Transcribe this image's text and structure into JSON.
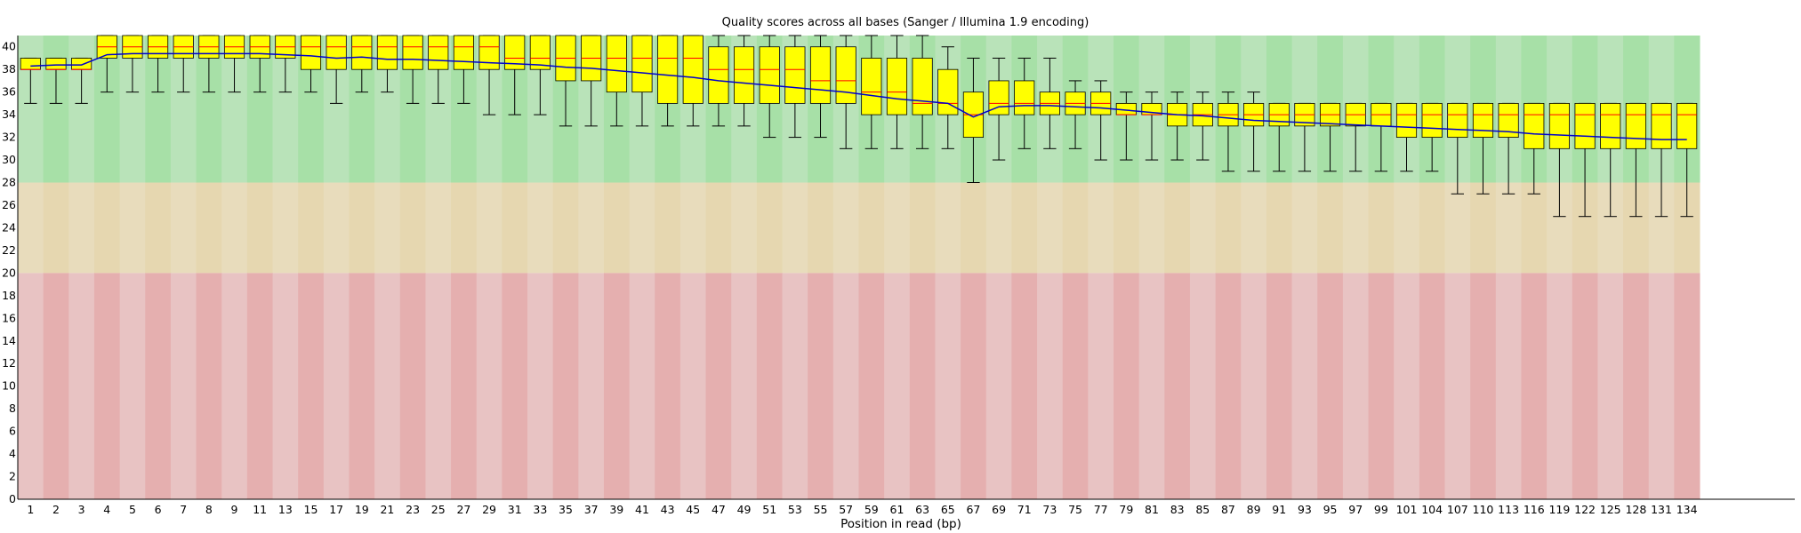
{
  "chart_data": {
    "type": "box",
    "title": "Quality scores across all bases (Sanger / Illumina 1.9 encoding)",
    "xlabel": "Position in read (bp)",
    "ylabel": "",
    "ylim": [
      0,
      41
    ],
    "yticks": [
      0,
      2,
      4,
      6,
      8,
      10,
      12,
      14,
      16,
      18,
      20,
      22,
      24,
      26,
      28,
      30,
      32,
      34,
      36,
      38,
      40
    ],
    "categories": [
      "1",
      "2",
      "3",
      "4",
      "5",
      "6",
      "7",
      "8",
      "9",
      "10-11",
      "12-13",
      "14-15",
      "16-17",
      "18-19",
      "20-21",
      "22-23",
      "24-25",
      "26-27",
      "28-29",
      "30-31",
      "32-33",
      "34-35",
      "36-37",
      "38-39",
      "40-41",
      "42-43",
      "44-45",
      "46-47",
      "48-49",
      "50-51",
      "52-53",
      "54-55",
      "56-57",
      "58-59",
      "60-61",
      "62-63",
      "64-65",
      "66-67",
      "68-69",
      "70-71",
      "72-73",
      "74-75",
      "76-77",
      "78-79",
      "80-81",
      "82-83",
      "84-85",
      "86-87",
      "88-89",
      "90-91",
      "92-93",
      "94-95",
      "96-97",
      "98-99",
      "100-101",
      "102-104",
      "105-107",
      "108-110",
      "111-113",
      "114-116",
      "117-119",
      "120-122",
      "123-125",
      "126-128",
      "129-131",
      "132-134"
    ],
    "x_tick_labels": [
      "1",
      "2",
      "3",
      "4",
      "5",
      "6",
      "7",
      "8",
      "9",
      "11",
      "13",
      "15",
      "17",
      "19",
      "21",
      "23",
      "25",
      "27",
      "29",
      "31",
      "33",
      "35",
      "37",
      "39",
      "41",
      "43",
      "45",
      "47",
      "49",
      "51",
      "53",
      "55",
      "57",
      "59",
      "61",
      "63",
      "65",
      "67",
      "69",
      "71",
      "73",
      "75",
      "77",
      "79",
      "81",
      "83",
      "85",
      "87",
      "89",
      "91",
      "93",
      "95",
      "97",
      "99",
      "101",
      "104",
      "107",
      "110",
      "113",
      "116",
      "119",
      "122",
      "125",
      "128",
      "131",
      "134"
    ],
    "bands": [
      {
        "name": "good",
        "from": 28,
        "to": 41,
        "colors": [
          "#b9e3b9",
          "#a7e0a7"
        ]
      },
      {
        "name": "reasonable",
        "from": 20,
        "to": 28,
        "colors": [
          "#e8dcbc",
          "#e6d7b0"
        ]
      },
      {
        "name": "poor",
        "from": 0,
        "to": 20,
        "colors": [
          "#e8c3c3",
          "#e5afaf"
        ]
      }
    ],
    "colors": {
      "box": "#ffff00",
      "median": "#ff0000",
      "mean": "#0000cc",
      "whisker": "#000000"
    },
    "boxes": [
      {
        "q1": 38,
        "q3": 39,
        "median": 38,
        "low": 35,
        "high": 39
      },
      {
        "q1": 38,
        "q3": 39,
        "median": 38,
        "low": 35,
        "high": 39
      },
      {
        "q1": 38,
        "q3": 39,
        "median": 38,
        "low": 35,
        "high": 39
      },
      {
        "q1": 39,
        "q3": 41,
        "median": 40,
        "low": 36,
        "high": 41
      },
      {
        "q1": 39,
        "q3": 41,
        "median": 40,
        "low": 36,
        "high": 41
      },
      {
        "q1": 39,
        "q3": 41,
        "median": 40,
        "low": 36,
        "high": 41
      },
      {
        "q1": 39,
        "q3": 41,
        "median": 40,
        "low": 36,
        "high": 41
      },
      {
        "q1": 39,
        "q3": 41,
        "median": 40,
        "low": 36,
        "high": 41
      },
      {
        "q1": 39,
        "q3": 41,
        "median": 40,
        "low": 36,
        "high": 41
      },
      {
        "q1": 39,
        "q3": 41,
        "median": 40,
        "low": 36,
        "high": 41
      },
      {
        "q1": 39,
        "q3": 41,
        "median": 40,
        "low": 36,
        "high": 41
      },
      {
        "q1": 38,
        "q3": 41,
        "median": 40,
        "low": 36,
        "high": 41
      },
      {
        "q1": 38,
        "q3": 41,
        "median": 40,
        "low": 35,
        "high": 41
      },
      {
        "q1": 38,
        "q3": 41,
        "median": 40,
        "low": 36,
        "high": 41
      },
      {
        "q1": 38,
        "q3": 41,
        "median": 40,
        "low": 36,
        "high": 41
      },
      {
        "q1": 38,
        "q3": 41,
        "median": 40,
        "low": 35,
        "high": 41
      },
      {
        "q1": 38,
        "q3": 41,
        "median": 40,
        "low": 35,
        "high": 41
      },
      {
        "q1": 38,
        "q3": 41,
        "median": 40,
        "low": 35,
        "high": 41
      },
      {
        "q1": 38,
        "q3": 41,
        "median": 40,
        "low": 34,
        "high": 41
      },
      {
        "q1": 38,
        "q3": 41,
        "median": 39,
        "low": 34,
        "high": 41
      },
      {
        "q1": 38,
        "q3": 41,
        "median": 39,
        "low": 34,
        "high": 41
      },
      {
        "q1": 37,
        "q3": 41,
        "median": 39,
        "low": 33,
        "high": 41
      },
      {
        "q1": 37,
        "q3": 41,
        "median": 39,
        "low": 33,
        "high": 41
      },
      {
        "q1": 36,
        "q3": 41,
        "median": 39,
        "low": 33,
        "high": 41
      },
      {
        "q1": 36,
        "q3": 41,
        "median": 39,
        "low": 33,
        "high": 41
      },
      {
        "q1": 35,
        "q3": 41,
        "median": 39,
        "low": 33,
        "high": 41
      },
      {
        "q1": 35,
        "q3": 41,
        "median": 39,
        "low": 33,
        "high": 41
      },
      {
        "q1": 35,
        "q3": 40,
        "median": 38,
        "low": 33,
        "high": 41
      },
      {
        "q1": 35,
        "q3": 40,
        "median": 38,
        "low": 33,
        "high": 41
      },
      {
        "q1": 35,
        "q3": 40,
        "median": 38,
        "low": 32,
        "high": 41
      },
      {
        "q1": 35,
        "q3": 40,
        "median": 38,
        "low": 32,
        "high": 41
      },
      {
        "q1": 35,
        "q3": 40,
        "median": 37,
        "low": 32,
        "high": 41
      },
      {
        "q1": 35,
        "q3": 40,
        "median": 37,
        "low": 31,
        "high": 41
      },
      {
        "q1": 34,
        "q3": 39,
        "median": 36,
        "low": 31,
        "high": 41
      },
      {
        "q1": 34,
        "q3": 39,
        "median": 36,
        "low": 31,
        "high": 41
      },
      {
        "q1": 34,
        "q3": 39,
        "median": 35,
        "low": 31,
        "high": 41
      },
      {
        "q1": 34,
        "q3": 38,
        "median": 35,
        "low": 31,
        "high": 40
      },
      {
        "q1": 32,
        "q3": 36,
        "median": 34,
        "low": 28,
        "high": 39
      },
      {
        "q1": 34,
        "q3": 37,
        "median": 35,
        "low": 30,
        "high": 39
      },
      {
        "q1": 34,
        "q3": 37,
        "median": 35,
        "low": 31,
        "high": 39
      },
      {
        "q1": 34,
        "q3": 36,
        "median": 35,
        "low": 31,
        "high": 39
      },
      {
        "q1": 34,
        "q3": 36,
        "median": 35,
        "low": 31,
        "high": 37
      },
      {
        "q1": 34,
        "q3": 36,
        "median": 35,
        "low": 30,
        "high": 37
      },
      {
        "q1": 34,
        "q3": 35,
        "median": 34,
        "low": 30,
        "high": 36
      },
      {
        "q1": 34,
        "q3": 35,
        "median": 34,
        "low": 30,
        "high": 36
      },
      {
        "q1": 33,
        "q3": 35,
        "median": 34,
        "low": 30,
        "high": 36
      },
      {
        "q1": 33,
        "q3": 35,
        "median": 34,
        "low": 30,
        "high": 36
      },
      {
        "q1": 33,
        "q3": 35,
        "median": 34,
        "low": 29,
        "high": 36
      },
      {
        "q1": 33,
        "q3": 35,
        "median": 34,
        "low": 29,
        "high": 36
      },
      {
        "q1": 33,
        "q3": 35,
        "median": 34,
        "low": 29,
        "high": 35
      },
      {
        "q1": 33,
        "q3": 35,
        "median": 34,
        "low": 29,
        "high": 35
      },
      {
        "q1": 33,
        "q3": 35,
        "median": 34,
        "low": 29,
        "high": 35
      },
      {
        "q1": 33,
        "q3": 35,
        "median": 34,
        "low": 29,
        "high": 35
      },
      {
        "q1": 33,
        "q3": 35,
        "median": 34,
        "low": 29,
        "high": 35
      },
      {
        "q1": 32,
        "q3": 35,
        "median": 34,
        "low": 29,
        "high": 35
      },
      {
        "q1": 32,
        "q3": 35,
        "median": 34,
        "low": 29,
        "high": 35
      },
      {
        "q1": 32,
        "q3": 35,
        "median": 34,
        "low": 27,
        "high": 35
      },
      {
        "q1": 32,
        "q3": 35,
        "median": 34,
        "low": 27,
        "high": 35
      },
      {
        "q1": 32,
        "q3": 35,
        "median": 34,
        "low": 27,
        "high": 35
      },
      {
        "q1": 31,
        "q3": 35,
        "median": 34,
        "low": 27,
        "high": 35
      },
      {
        "q1": 31,
        "q3": 35,
        "median": 34,
        "low": 25,
        "high": 35
      },
      {
        "q1": 31,
        "q3": 35,
        "median": 34,
        "low": 25,
        "high": 35
      },
      {
        "q1": 31,
        "q3": 35,
        "median": 34,
        "low": 25,
        "high": 35
      },
      {
        "q1": 31,
        "q3": 35,
        "median": 34,
        "low": 25,
        "high": 35
      },
      {
        "q1": 31,
        "q3": 35,
        "median": 34,
        "low": 25,
        "high": 35
      },
      {
        "q1": 31,
        "q3": 35,
        "median": 34,
        "low": 25,
        "high": 35
      }
    ],
    "mean": [
      38.3,
      38.4,
      38.4,
      39.3,
      39.4,
      39.4,
      39.4,
      39.4,
      39.4,
      39.4,
      39.3,
      39.2,
      39.0,
      39.1,
      38.9,
      38.9,
      38.8,
      38.7,
      38.6,
      38.5,
      38.4,
      38.2,
      38.1,
      37.9,
      37.7,
      37.5,
      37.3,
      37.0,
      36.8,
      36.6,
      36.4,
      36.2,
      36.0,
      35.7,
      35.4,
      35.2,
      35.0,
      33.8,
      34.7,
      34.8,
      34.8,
      34.7,
      34.6,
      34.4,
      34.2,
      34.0,
      33.9,
      33.7,
      33.5,
      33.4,
      33.3,
      33.2,
      33.1,
      33.0,
      32.9,
      32.8,
      32.7,
      32.6,
      32.5,
      32.3,
      32.2,
      32.1,
      32.0,
      31.9,
      31.8,
      31.8
    ]
  }
}
